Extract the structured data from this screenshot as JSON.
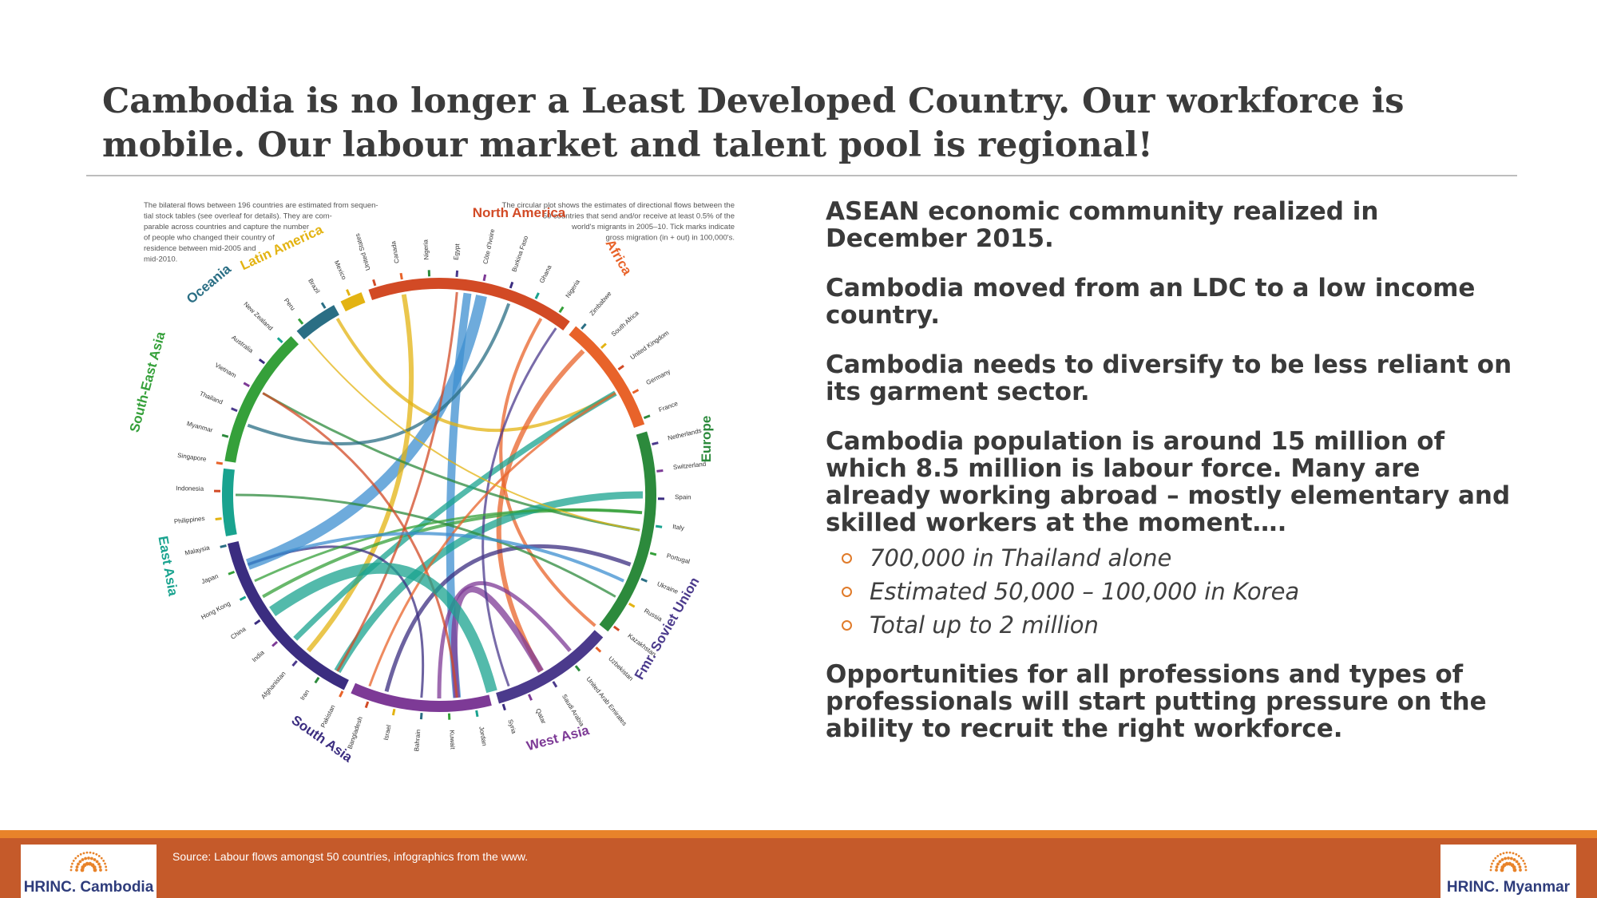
{
  "slide": {
    "title": "Cambodia is no longer a Least Developed Country.  Our workforce is mobile.  Our labour market and talent pool is regional!"
  },
  "figure": {
    "caption_left": [
      "The bilateral flows between 196 countries are estimated from sequen-",
      "tial stock tables (see overleaf for details). They are com-",
      "parable across countries and capture the number",
      "of people who changed their country of",
      "residence between mid-2005 and",
      "mid-2010."
    ],
    "caption_right": [
      "The circular plot shows the estimates of directional flows between the",
      "50 countries that send and/or receive at least 0.5% of the",
      "world's migrants in 2005–10. Tick marks indicate",
      "gross migration (in + out) in 100,000's."
    ],
    "regions": [
      {
        "name": "North America",
        "color": "#d24a25"
      },
      {
        "name": "Africa",
        "color": "#e8632a"
      },
      {
        "name": "Europe",
        "color": "#2c8a3c"
      },
      {
        "name": "Fmr. Soviet Union",
        "color": "#4b3a8c"
      },
      {
        "name": "West Asia",
        "color": "#7d3a96"
      },
      {
        "name": "South Asia",
        "color": "#3b2d80"
      },
      {
        "name": "East Asia",
        "color": "#19a38f"
      },
      {
        "name": "South-East Asia",
        "color": "#35a03a"
      },
      {
        "name": "Oceania",
        "color": "#2a6e84"
      },
      {
        "name": "Latin America",
        "color": "#e3b312"
      }
    ],
    "countries": [
      "United States",
      "Canada",
      "Nigeria",
      "Egypt",
      "Côte d'Ivoire",
      "Burkina Faso",
      "Ghana",
      "Nigeria",
      "Zimbabwe",
      "South Africa",
      "United Kingdom",
      "Germany",
      "France",
      "Netherlands",
      "Switzerland",
      "Spain",
      "Italy",
      "Portugal",
      "Ukraine",
      "Russia",
      "Kazakhstan",
      "Uzbekistan",
      "United Arab Emirates",
      "Saudi Arabia",
      "Qatar",
      "Syria",
      "Jordan",
      "Kuwait",
      "Bahrain",
      "Israel",
      "Bangladesh",
      "Pakistan",
      "Iran",
      "Afghanistan",
      "India",
      "China",
      "Hong Kong",
      "Japan",
      "Malaysia",
      "Philippines",
      "Indonesia",
      "Singapore",
      "Myanmar",
      "Thailand",
      "Vietnam",
      "Australia",
      "New Zealand",
      "Peru",
      "Brazil",
      "Mexico"
    ]
  },
  "bullets": [
    {
      "text": "ASEAN economic community realized in December 2015."
    },
    {
      "text": "Cambodia moved from an LDC to a low income country."
    },
    {
      "text": "Cambodia needs to diversify to be less reliant on its garment sector."
    },
    {
      "text": "Cambodia population is around 15 million of which 8.5 million is labour force.  Many are already working abroad – mostly elementary and skilled workers at the moment…."
    }
  ],
  "sub_bullets": [
    {
      "text": "700,000 in Thailand alone"
    },
    {
      "text": "Estimated 50,000 – 100,000 in Korea"
    },
    {
      "text": "Total up to 2 million"
    }
  ],
  "closing_bullet": "Opportunities for all professions and types of professionals will start putting pressure on the ability to recruit the right workforce.",
  "footer": {
    "source": "Source:  Labour flows amongst 50 countries, infographics from the www.",
    "logo_left": "HRINC. Cambodia",
    "logo_right": "HRINC. Myanmar",
    "accent": "#e8832a",
    "band": "#c55a2a"
  }
}
